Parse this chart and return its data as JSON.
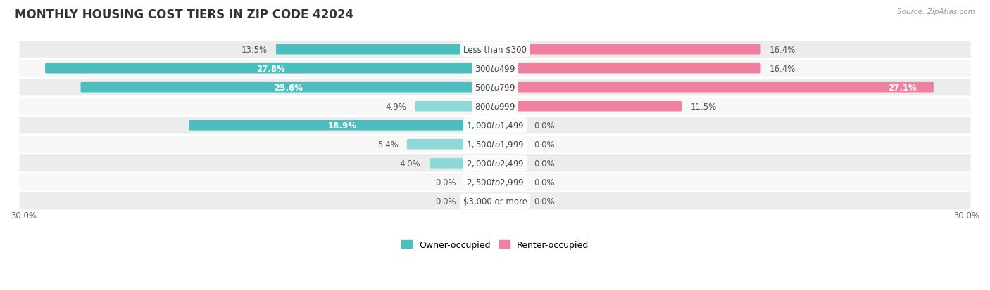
{
  "title": "MONTHLY HOUSING COST TIERS IN ZIP CODE 42024",
  "source": "Source: ZipAtlas.com",
  "categories": [
    "Less than $300",
    "$300 to $499",
    "$500 to $799",
    "$800 to $999",
    "$1,000 to $1,499",
    "$1,500 to $1,999",
    "$2,000 to $2,499",
    "$2,500 to $2,999",
    "$3,000 or more"
  ],
  "owner_values": [
    13.5,
    27.8,
    25.6,
    4.9,
    18.9,
    5.4,
    4.0,
    0.0,
    0.0
  ],
  "renter_values": [
    16.4,
    16.4,
    27.1,
    11.5,
    0.0,
    0.0,
    0.0,
    0.0,
    0.0
  ],
  "owner_color": "#4BBFBF",
  "renter_color": "#F080A0",
  "owner_color_light": "#8ED8D8",
  "renter_color_light": "#F8AABF",
  "background_row_even": "#ECECEC",
  "background_row_odd": "#F7F7F7",
  "axis_limit": 30.0,
  "legend_owner": "Owner-occupied",
  "legend_renter": "Renter-occupied",
  "title_fontsize": 12,
  "label_fontsize": 8.5,
  "category_fontsize": 8.5,
  "zero_stub": 1.8
}
